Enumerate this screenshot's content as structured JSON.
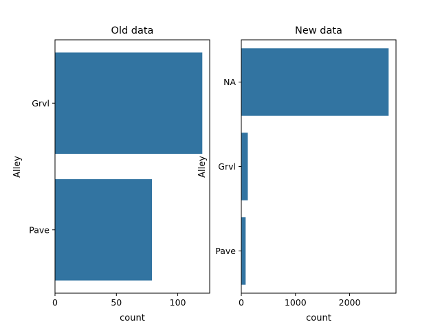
{
  "chart_data": [
    {
      "type": "bar",
      "orientation": "horizontal",
      "title": "Old data",
      "xlabel": "count",
      "ylabel": "Alley",
      "categories": [
        "Grvl",
        "Pave"
      ],
      "values": [
        120,
        79
      ],
      "xlim": [
        0,
        126
      ],
      "xticks": [
        0,
        50,
        100
      ],
      "xtick_labels": [
        "0",
        "50",
        "100"
      ],
      "bar_color": "#3274a1",
      "grid": false
    },
    {
      "type": "bar",
      "orientation": "horizontal",
      "title": "New data",
      "xlabel": "count",
      "ylabel": "Alley",
      "categories": [
        "NA",
        "Grvl",
        "Pave"
      ],
      "values": [
        2720,
        120,
        80
      ],
      "xlim": [
        0,
        2856
      ],
      "xticks": [
        0,
        1000,
        2000
      ],
      "xtick_labels": [
        "0",
        "1000",
        "2000"
      ],
      "bar_color": "#3274a1",
      "grid": false
    }
  ]
}
